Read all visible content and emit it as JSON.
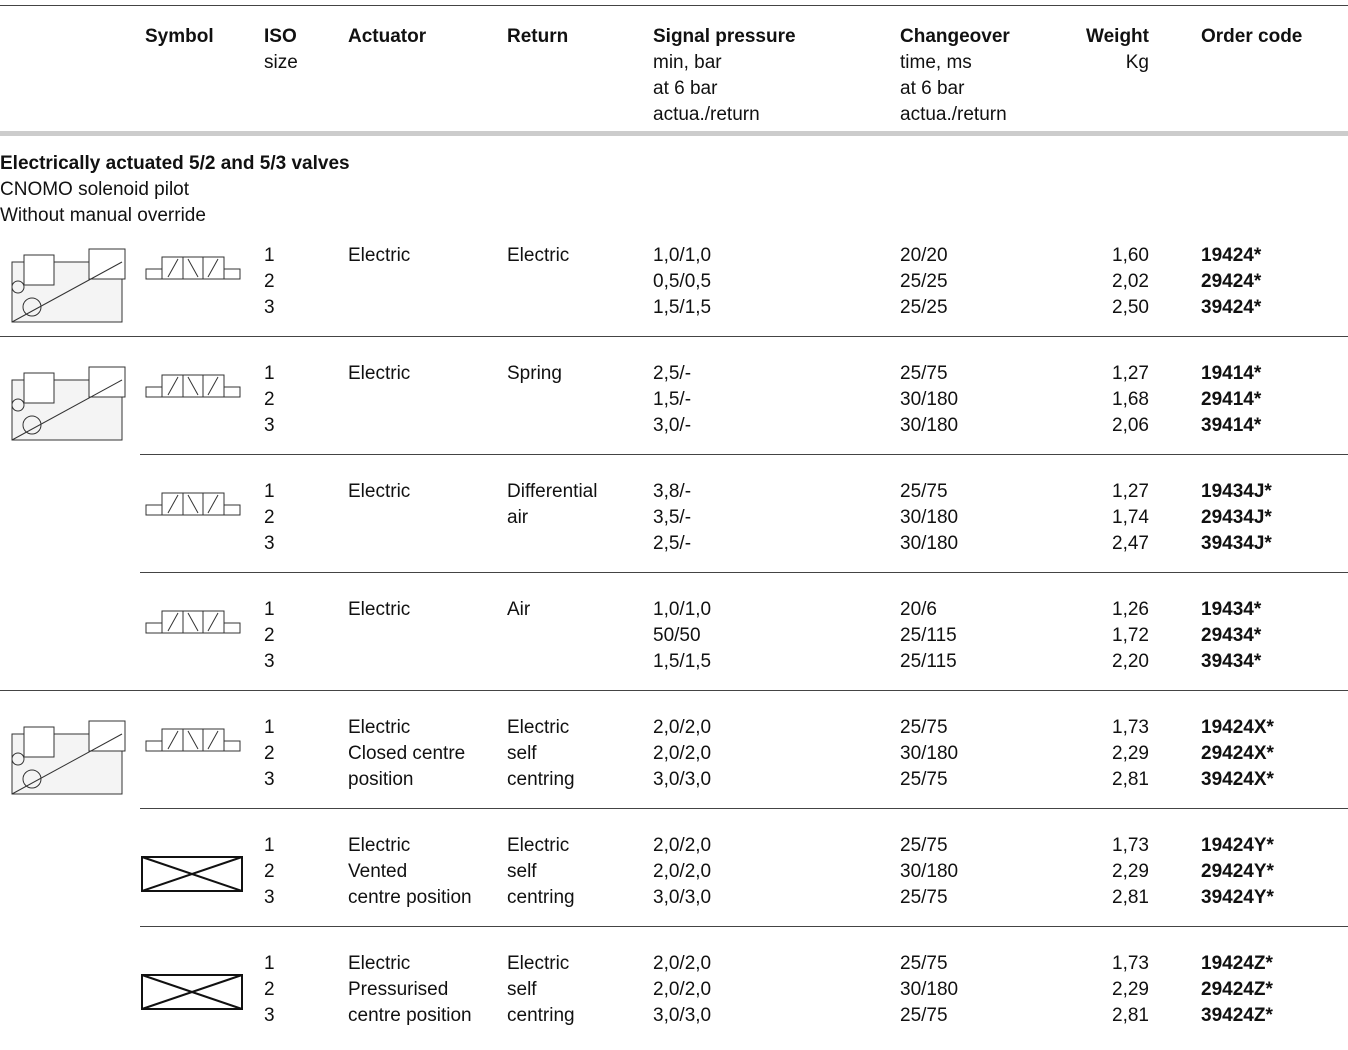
{
  "header": {
    "symbol": "Symbol",
    "iso": [
      "ISO",
      "size"
    ],
    "actuator": "Actuator",
    "return": "Return",
    "signal": [
      "Signal pressure",
      "min, bar",
      "at 6 bar",
      "actua./return"
    ],
    "changeover": [
      "Changeover",
      "time, ms",
      "at 6 bar",
      "actua./return"
    ],
    "weight": [
      "Weight",
      "Kg"
    ],
    "order_code": "Order code"
  },
  "section": {
    "title": "Electrically actuated 5/2 and 5/3 valves",
    "subtitle": [
      "CNOMO solenoid pilot",
      "Without manual override"
    ]
  },
  "groups": [
    {
      "iso": [
        "1",
        "2",
        "3"
      ],
      "actuator": [
        "Electric"
      ],
      "return": [
        "Electric"
      ],
      "signal": [
        "1,0/1,0",
        "0,5/0,5",
        "1,5/1,5"
      ],
      "changeover": [
        "20/20",
        "25/25",
        "25/25"
      ],
      "weight": [
        "1,60",
        "2,02",
        "2,50"
      ],
      "code": [
        "19424*",
        "29424*",
        "39424*"
      ]
    },
    {
      "iso": [
        "1",
        "2",
        "3"
      ],
      "actuator": [
        "Electric"
      ],
      "return": [
        "Spring"
      ],
      "signal": [
        "2,5/-",
        "1,5/-",
        "3,0/-"
      ],
      "changeover": [
        "25/75",
        "30/180",
        "30/180"
      ],
      "weight": [
        "1,27",
        "1,68",
        "2,06"
      ],
      "code": [
        "19414*",
        "29414*",
        "39414*"
      ]
    },
    {
      "iso": [
        "1",
        "2",
        "3"
      ],
      "actuator": [
        "Electric"
      ],
      "return": [
        "Differential",
        "air"
      ],
      "signal": [
        "3,8/-",
        "3,5/-",
        "2,5/-"
      ],
      "changeover": [
        "25/75",
        "30/180",
        "30/180"
      ],
      "weight": [
        "1,27",
        "1,74",
        "2,47"
      ],
      "code": [
        "19434J*",
        "29434J*",
        "39434J*"
      ]
    },
    {
      "iso": [
        "1",
        "2",
        "3"
      ],
      "actuator": [
        "Electric"
      ],
      "return": [
        "Air"
      ],
      "signal": [
        "1,0/1,0",
        "50/50",
        "1,5/1,5"
      ],
      "changeover": [
        "20/6",
        "25/115",
        "25/115"
      ],
      "weight": [
        "1,26",
        "1,72",
        "2,20"
      ],
      "code": [
        "19434*",
        "29434*",
        "39434*"
      ]
    },
    {
      "iso": [
        "1",
        "2",
        "3"
      ],
      "actuator": [
        "Electric",
        "Closed centre",
        "position"
      ],
      "return": [
        "Electric",
        "self",
        "centring"
      ],
      "signal": [
        "2,0/2,0",
        "2,0/2,0",
        "3,0/3,0"
      ],
      "changeover": [
        "25/75",
        "30/180",
        "25/75"
      ],
      "weight": [
        "1,73",
        "2,29",
        "2,81"
      ],
      "code": [
        "19424X*",
        "29424X*",
        "39424X*"
      ]
    },
    {
      "iso": [
        "1",
        "2",
        "3"
      ],
      "actuator": [
        "Electric",
        "Vented",
        "centre position"
      ],
      "return": [
        "Electric",
        "self",
        "centring"
      ],
      "signal": [
        "2,0/2,0",
        "2,0/2,0",
        "3,0/3,0"
      ],
      "changeover": [
        "25/75",
        "30/180",
        "25/75"
      ],
      "weight": [
        "1,73",
        "2,29",
        "2,81"
      ],
      "code": [
        "19424Y*",
        "29424Y*",
        "39424Y*"
      ]
    },
    {
      "iso": [
        "1",
        "2",
        "3"
      ],
      "actuator": [
        "Electric",
        "Pressurised",
        "centre position"
      ],
      "return": [
        "Electric",
        "self",
        "centring"
      ],
      "signal": [
        "2,0/2,0",
        "2,0/2,0",
        "3,0/3,0"
      ],
      "changeover": [
        "25/75",
        "30/180",
        "25/75"
      ],
      "weight": [
        "1,73",
        "2,29",
        "2,81"
      ],
      "code": [
        "19424Z*",
        "29424Z*",
        "39424Z*"
      ]
    }
  ]
}
